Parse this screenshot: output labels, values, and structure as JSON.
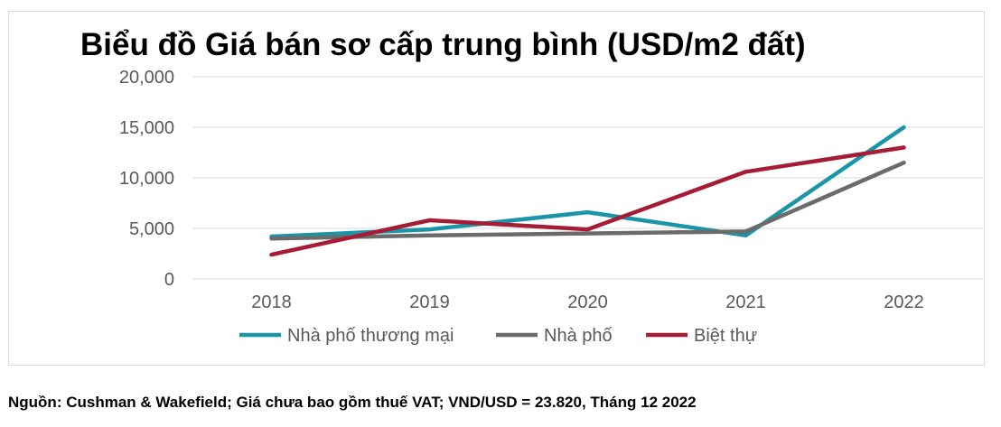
{
  "chart_data": {
    "type": "line",
    "title": "Biểu đồ Giá bán sơ cấp trung bình (USD/m2 đất)",
    "xlabel": "",
    "ylabel": "",
    "categories": [
      "2018",
      "2019",
      "2020",
      "2021",
      "2022"
    ],
    "ylim": [
      0,
      20000
    ],
    "yticks": [
      0,
      5000,
      10000,
      15000,
      20000
    ],
    "ytick_labels": [
      "0",
      "5,000",
      "10,000",
      "15,000",
      "20,000"
    ],
    "grid": true,
    "legend_position": "bottom",
    "series": [
      {
        "name": "Nhà phố thương mại",
        "color": "#1a95a8",
        "values": [
          4200,
          4900,
          6600,
          4300,
          15000
        ]
      },
      {
        "name": "Nhà phố",
        "color": "#6b6b6b",
        "values": [
          4000,
          4300,
          4500,
          4700,
          11500
        ]
      },
      {
        "name": "Biệt thự",
        "color": "#a61c35",
        "values": [
          2400,
          5800,
          4900,
          10600,
          13000
        ]
      }
    ]
  },
  "source_note": "Nguồn: Cushman & Wakefield; Giá chưa bao gồm thuế VAT; VND/USD = 23.820, Tháng 12 2022"
}
